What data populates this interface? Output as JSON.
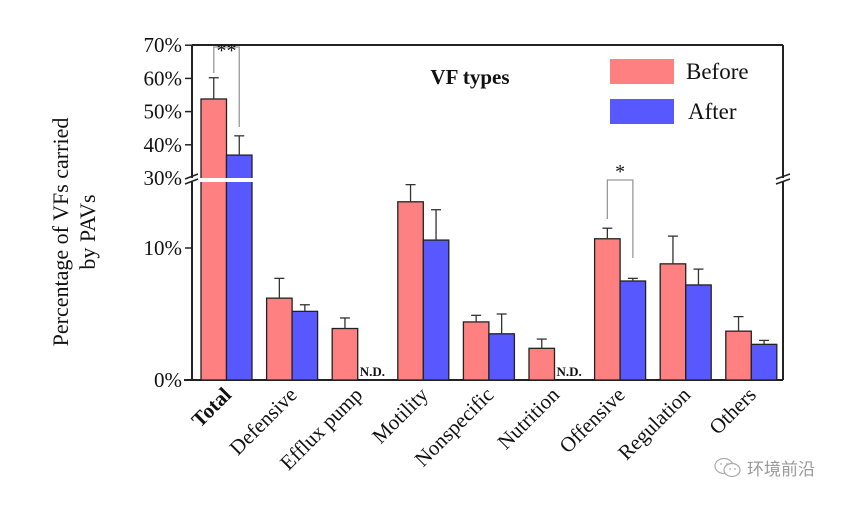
{
  "chart_data": {
    "type": "bar",
    "title": "VF types",
    "xlabel": "",
    "ylabel": "Percentage of VFs carried by PAVs",
    "ylabel_lines": [
      "Percentage of VFs carried",
      "by PAVs"
    ],
    "categories": [
      "Total",
      "Defensive",
      "Efflux pump",
      "Motility",
      "Nonspecific",
      "Nutrition",
      "Offensive",
      "Regulation",
      "Others"
    ],
    "series": [
      {
        "name": "Before",
        "color": "#ff8080",
        "values": [
          53.8,
          6.2,
          3.9,
          13.5,
          4.4,
          2.4,
          10.7,
          8.8,
          3.7
        ],
        "error": [
          6.4,
          1.5,
          0.8,
          1.3,
          0.5,
          0.7,
          0.8,
          2.1,
          1.1
        ]
      },
      {
        "name": "After",
        "color": "#5858ff",
        "values": [
          36.9,
          5.2,
          null,
          10.6,
          3.5,
          null,
          7.5,
          7.2,
          2.7
        ],
        "error": [
          5.8,
          0.5,
          null,
          2.3,
          1.5,
          null,
          0.2,
          1.2,
          0.3
        ]
      }
    ],
    "not_detected_label": "N.D.",
    "axis_break": {
      "lower_range": [
        0,
        15
      ],
      "upper_range": [
        30,
        70
      ]
    },
    "yticks_lower": [
      {
        "value": 0,
        "label": "0%"
      },
      {
        "value": 10,
        "label": "10%"
      }
    ],
    "yticks_upper": [
      {
        "value": 30,
        "label": "30%"
      },
      {
        "value": 40,
        "label": "40%"
      },
      {
        "value": 50,
        "label": "50%"
      },
      {
        "value": 60,
        "label": "60%"
      },
      {
        "value": 70,
        "label": "70%"
      }
    ],
    "significance": [
      {
        "category": "Total",
        "label": "**"
      },
      {
        "category": "Offensive",
        "label": "*"
      }
    ],
    "legend_position": "top-right",
    "grid": false,
    "bold_categories": [
      "Total"
    ]
  },
  "watermark": {
    "text": "环境前沿",
    "icon": "wechat-icon"
  }
}
